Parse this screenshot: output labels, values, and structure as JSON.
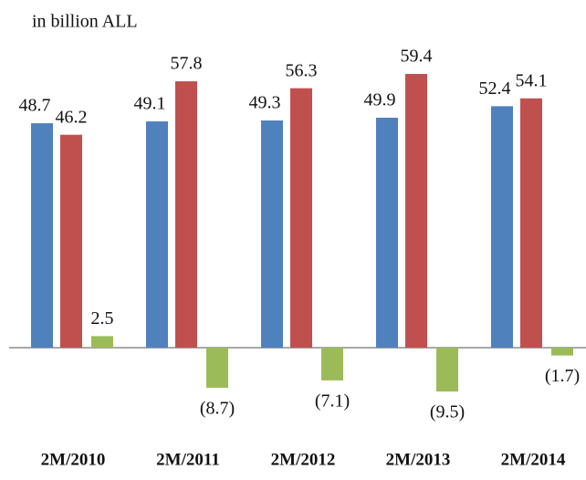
{
  "chart_data": {
    "type": "bar",
    "title": "in billion ALL",
    "categories": [
      "2M/2010",
      "2M/2011",
      "2M/2012",
      "2M/2013",
      "2M/2014"
    ],
    "series": [
      {
        "color": "#4f81bd",
        "values": [
          48.7,
          49.1,
          49.3,
          49.9,
          52.4
        ]
      },
      {
        "color": "#c0504d",
        "values": [
          46.2,
          57.8,
          56.3,
          59.4,
          54.1
        ]
      },
      {
        "color": "#9bbb59",
        "values": [
          2.5,
          -8.7,
          -7.1,
          -9.5,
          -1.7
        ],
        "value_labels": [
          "2.5",
          "(8.7)",
          "(7.1)",
          "(9.5)",
          "(1.7)"
        ]
      }
    ]
  }
}
